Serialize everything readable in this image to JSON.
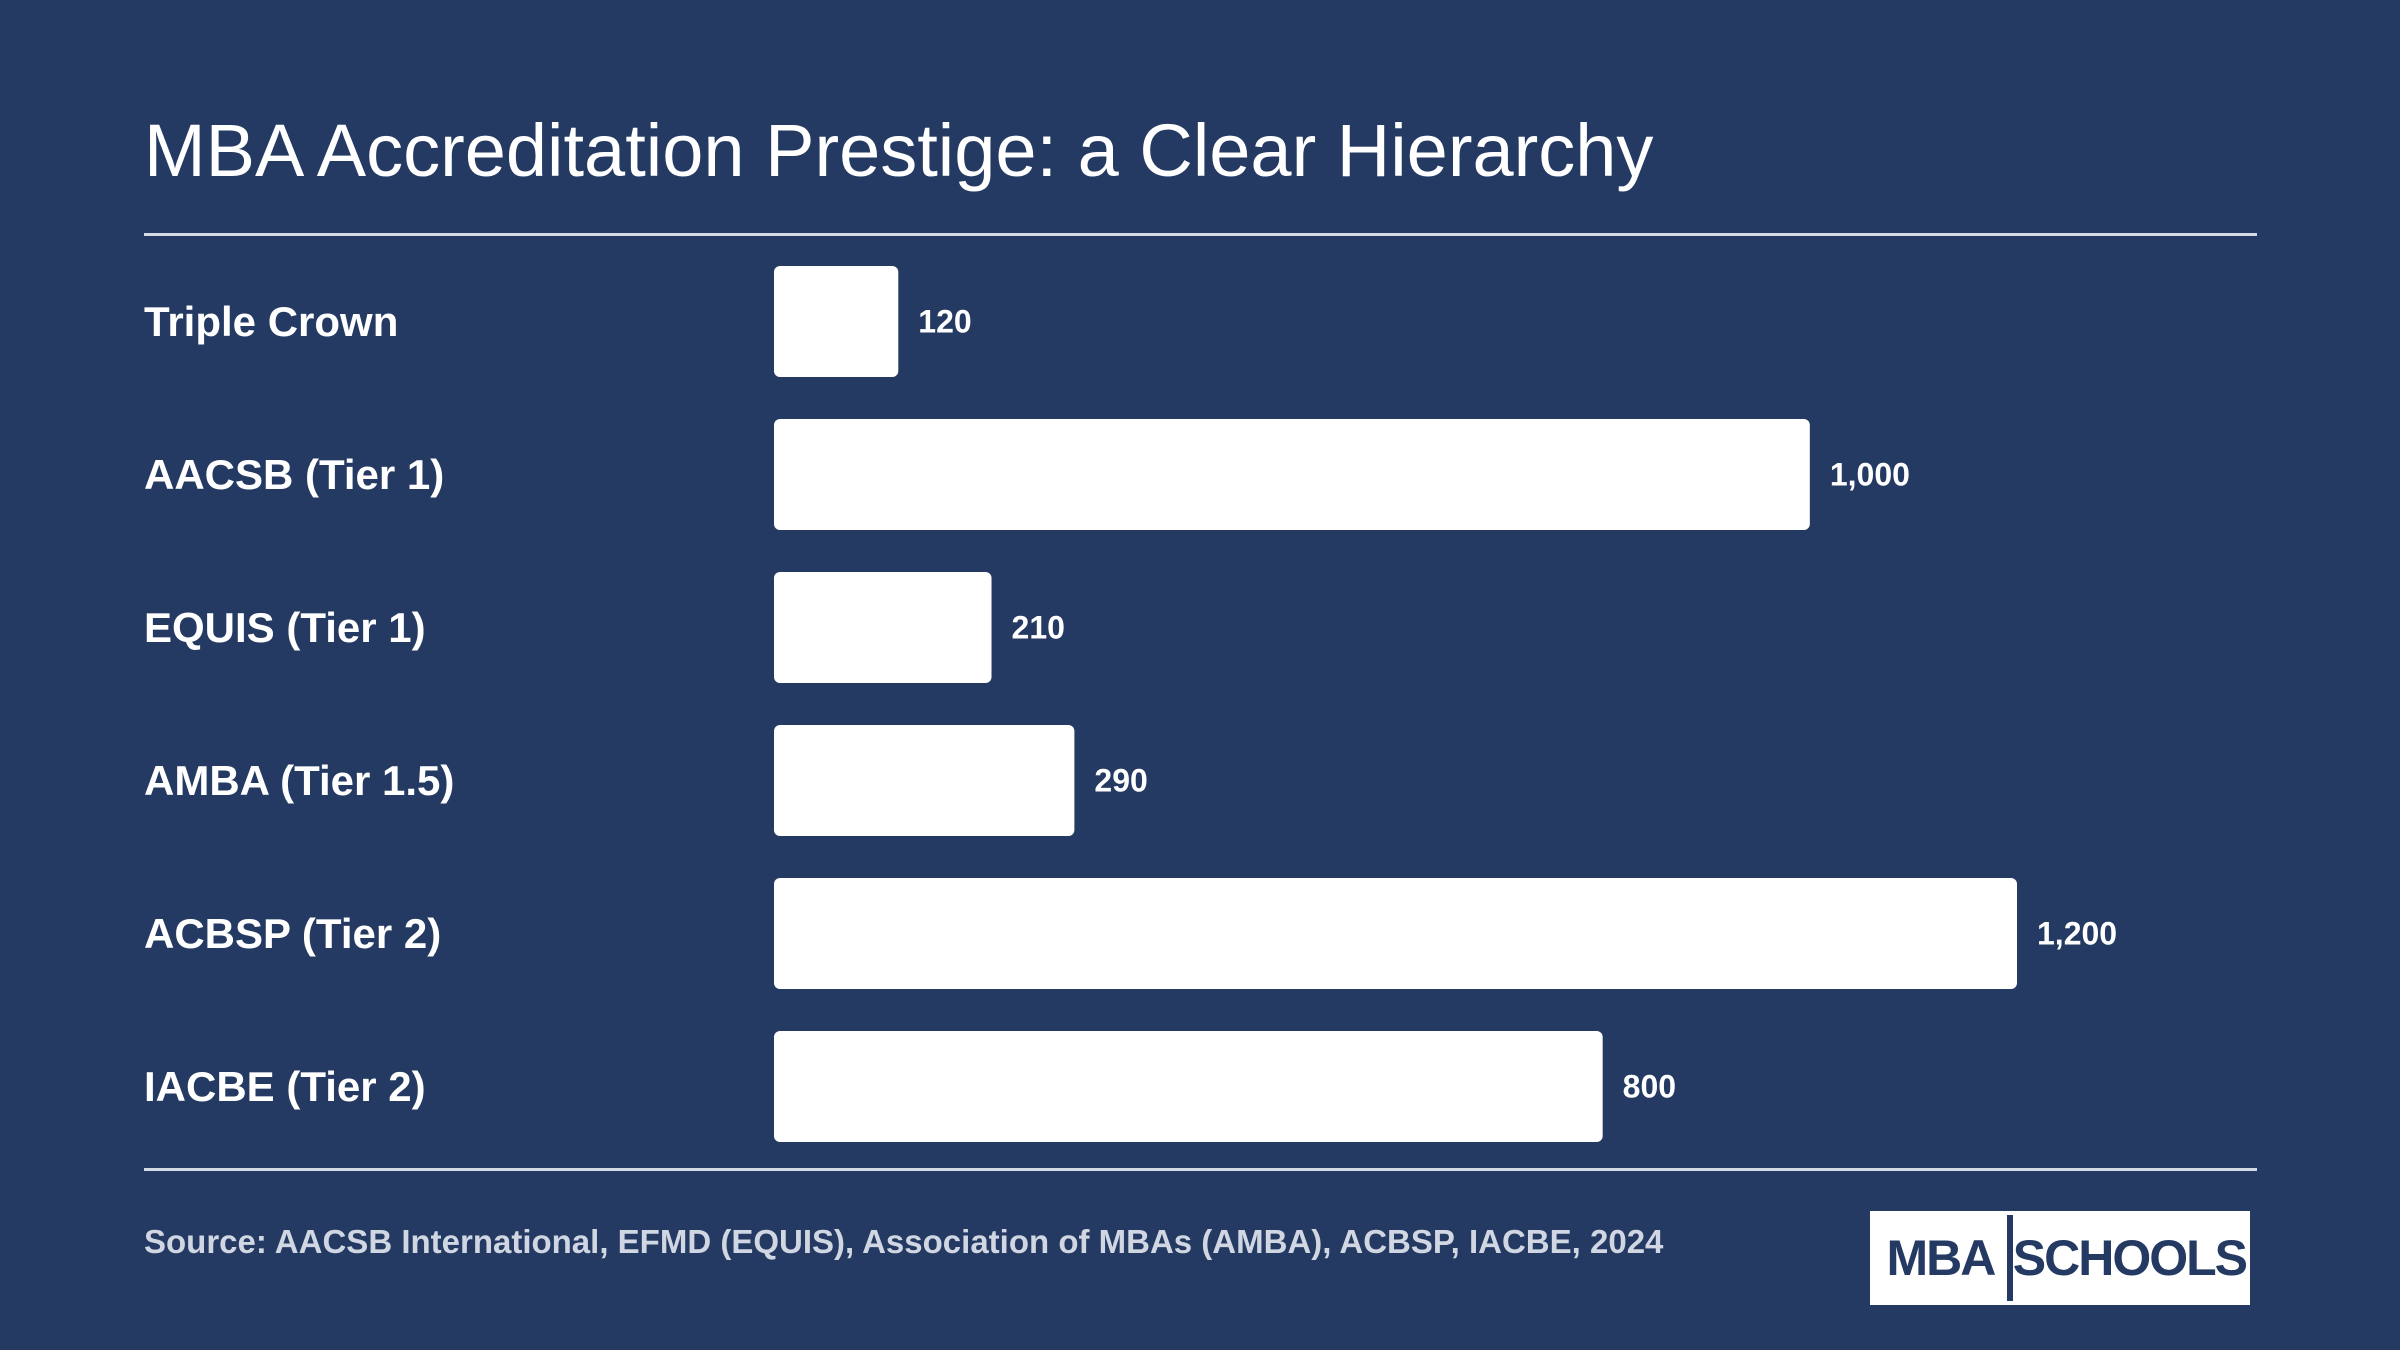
{
  "colors": {
    "background": "#243a63",
    "bar": "#ffffff",
    "text": "#ffffff",
    "muted": "#d0d7e2"
  },
  "chart_data": {
    "type": "bar",
    "orientation": "horizontal",
    "title": "MBA Accreditation Prestige: a Clear Hierarchy",
    "categories": [
      "Triple Crown",
      "AACSB (Tier 1)",
      "EQUIS (Tier 1)",
      "AMBA (Tier 1.5)",
      "ACBSP (Tier 2)",
      "IACBE (Tier 2)"
    ],
    "values": [
      120,
      1000,
      210,
      290,
      1200,
      800
    ],
    "value_labels": [
      "120",
      "1,000",
      "210",
      "290",
      "1,200",
      "800"
    ],
    "xlim": [
      0,
      1200
    ],
    "grid": false,
    "legend": "none"
  },
  "source": "Source: AACSB International, EFMD (EQUIS), Association of MBAs (AMBA), ACBSP, IACBE, 2024",
  "logo": {
    "left": "MBA",
    "right": "SCHOOLS"
  }
}
